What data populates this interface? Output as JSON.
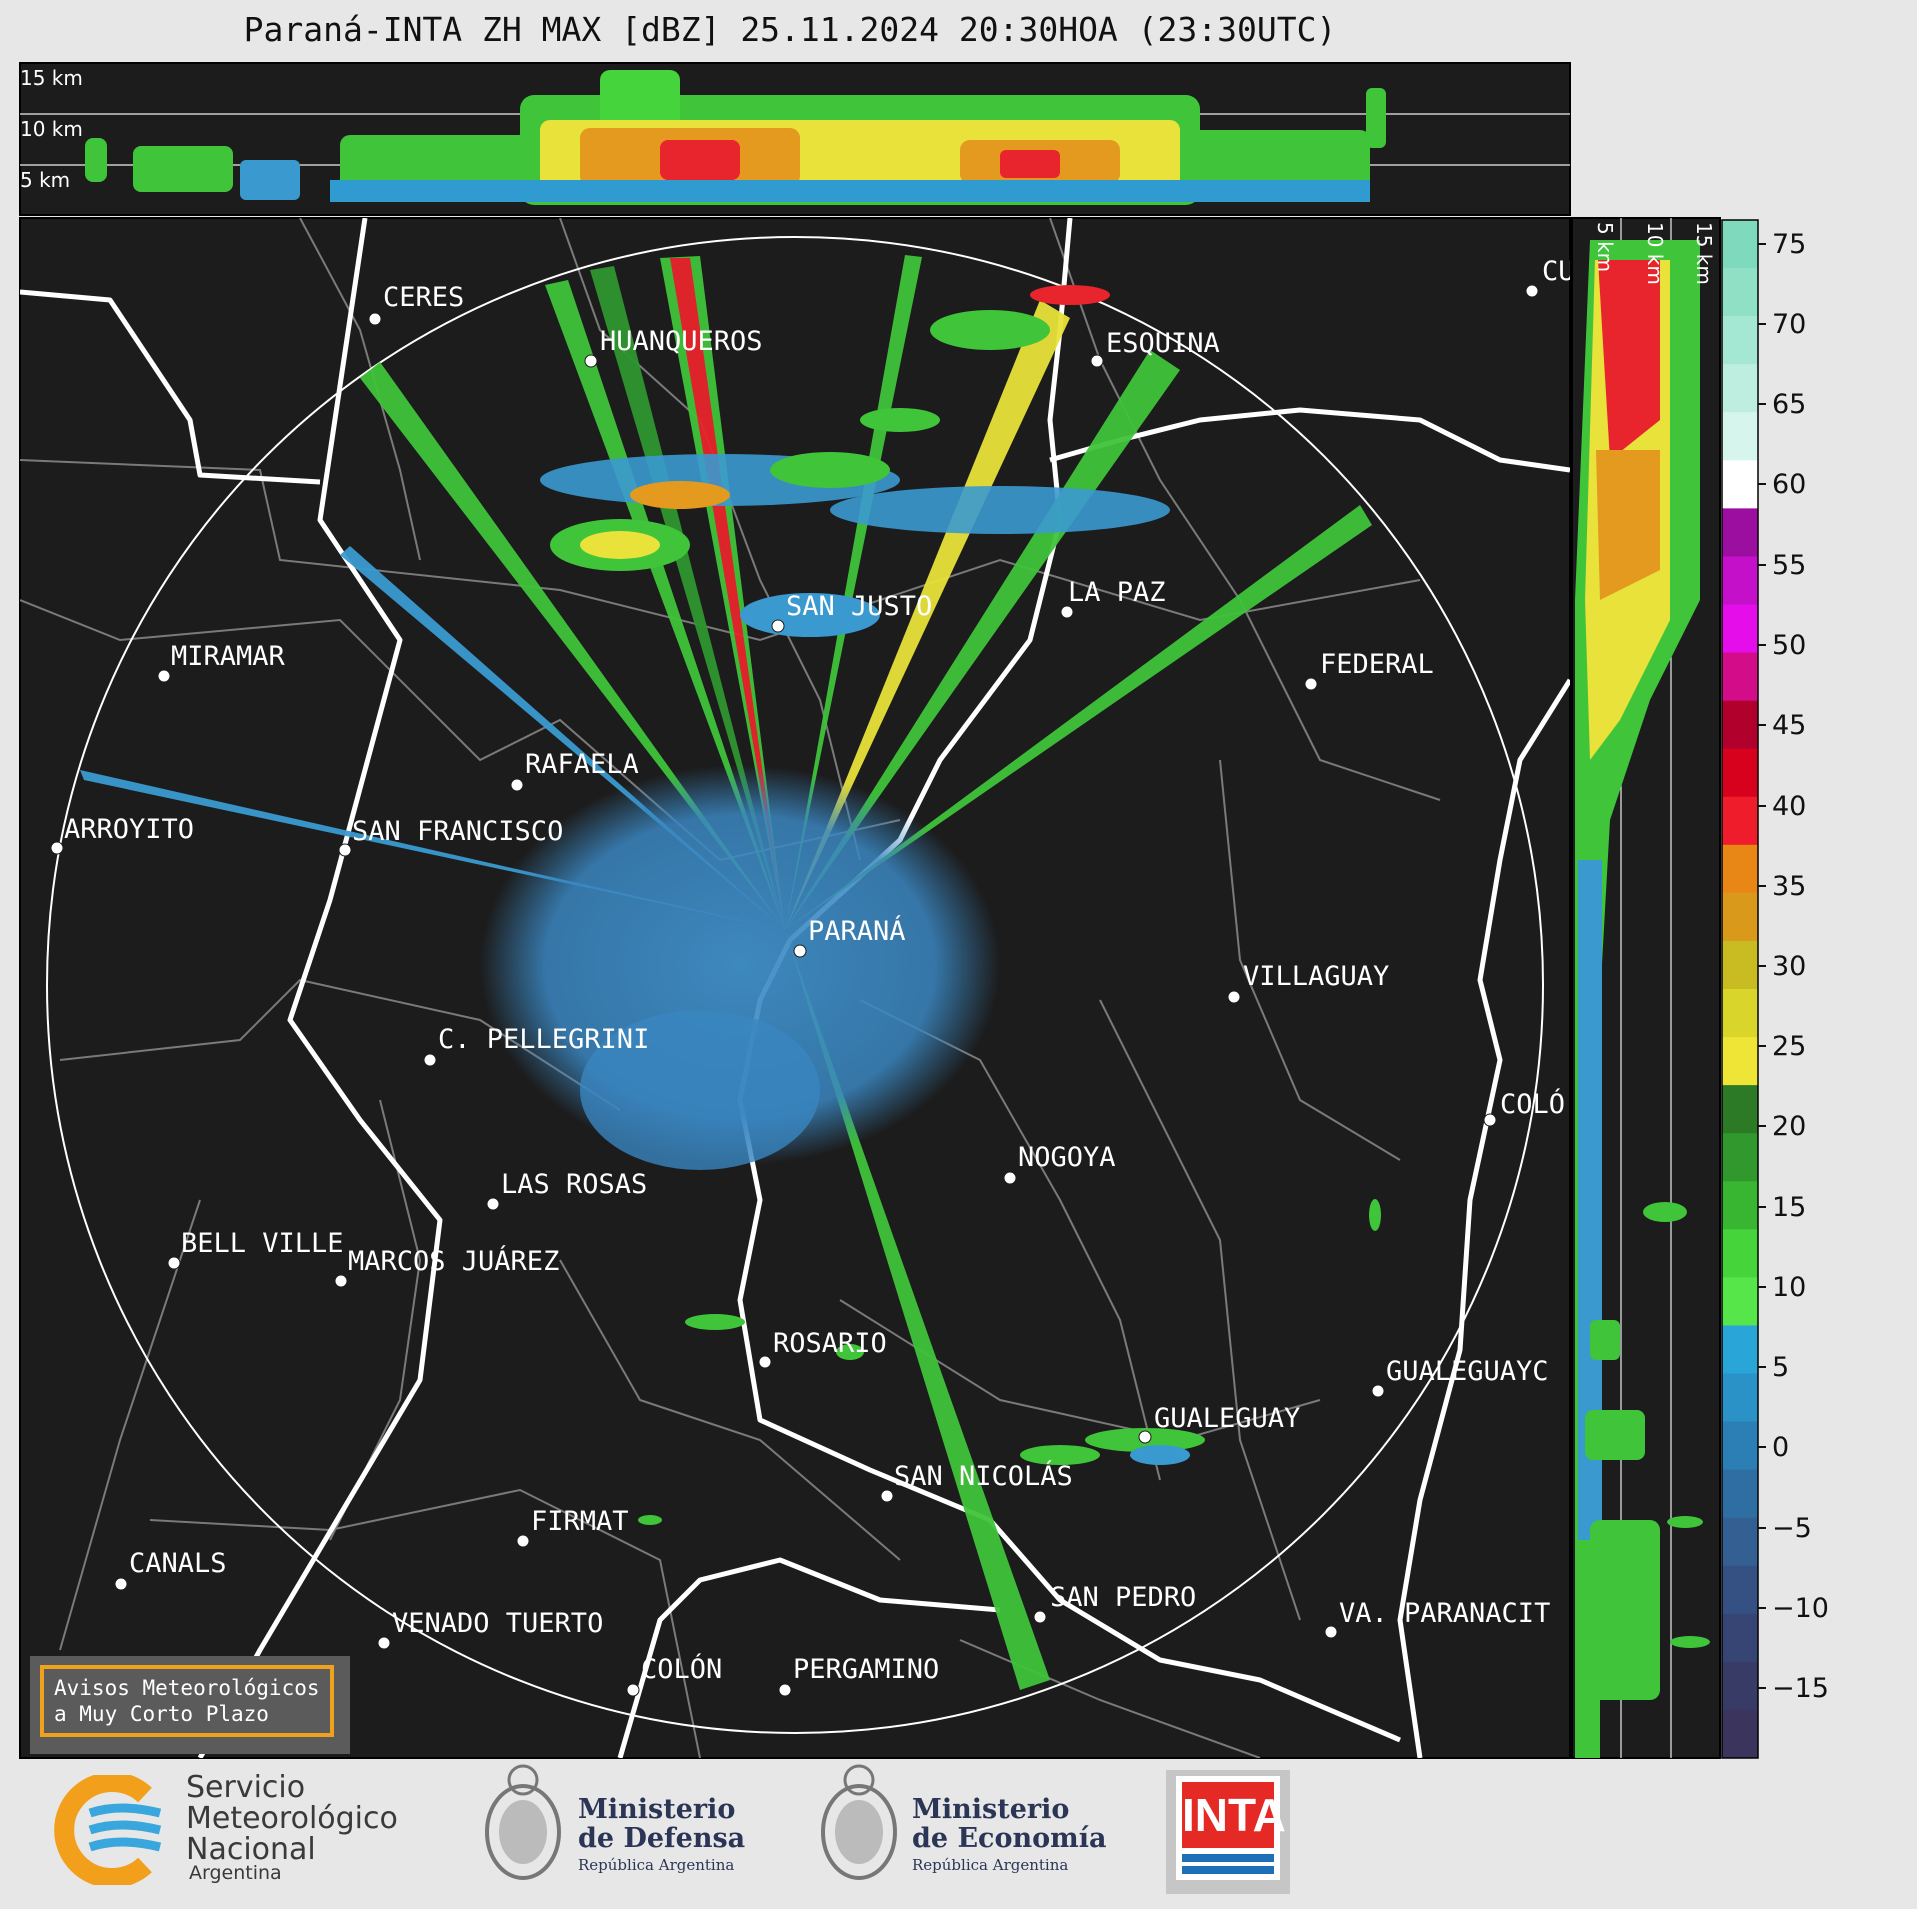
{
  "title": "Paraná-INTA ZH MAX [dBZ] 25.11.2024 20:30HOA (23:30UTC)",
  "top_panel": {
    "height_labels": [
      "15 km",
      "10 km",
      "5 km"
    ]
  },
  "side_panel": {
    "height_labels": [
      "5 km",
      "10 km",
      "15 km"
    ]
  },
  "colorbar": {
    "ticks": [
      "75",
      "70",
      "65",
      "60",
      "55",
      "50",
      "45",
      "40",
      "35",
      "30",
      "25",
      "20",
      "15",
      "10",
      "5",
      "0",
      "−5",
      "−10",
      "−15"
    ]
  },
  "cities": [
    {
      "name": "CERES"
    },
    {
      "name": "HUANQUEROS"
    },
    {
      "name": "ESQUINA"
    },
    {
      "name": "CU"
    },
    {
      "name": "SAN JUSTO"
    },
    {
      "name": "LA PAZ"
    },
    {
      "name": "MIRAMAR"
    },
    {
      "name": "FEDERAL"
    },
    {
      "name": "RAFAELA"
    },
    {
      "name": "ARROYITO"
    },
    {
      "name": "SAN FRANCISCO"
    },
    {
      "name": "PARANÁ"
    },
    {
      "name": "VILLAGUAY"
    },
    {
      "name": "C. PELLEGRINI"
    },
    {
      "name": "COLÓ"
    },
    {
      "name": "NOGOYA"
    },
    {
      "name": "LAS ROSAS"
    },
    {
      "name": "BELL VILLE"
    },
    {
      "name": "MARCOS JUÁREZ"
    },
    {
      "name": "ROSARIO"
    },
    {
      "name": "GUALEGUAYC"
    },
    {
      "name": "GUALEGUAY"
    },
    {
      "name": "SAN NICOLÁS"
    },
    {
      "name": "FIRMAT"
    },
    {
      "name": "CANALS"
    },
    {
      "name": "SAN PEDRO"
    },
    {
      "name": "VENADO TUERTO"
    },
    {
      "name": "VA. PARANACIT"
    },
    {
      "name": "COLÓN"
    },
    {
      "name": "PERGAMINO"
    }
  ],
  "notice": {
    "line1": "Avisos Meteorológicos",
    "line2": "a Muy Corto Plazo"
  },
  "logos": {
    "smn": {
      "line1": "Servicio",
      "line2": "Meteorológico",
      "line3": "Nacional",
      "country": "Argentina"
    },
    "defensa": {
      "line1": "Ministerio",
      "line2": "de Defensa",
      "sub": "República Argentina"
    },
    "economia": {
      "line1": "Ministerio",
      "line2": "de Economía",
      "sub": "República Argentina"
    },
    "inta": {
      "text": "INTA"
    }
  },
  "colors": {
    "map_bg": "#1c1c1c",
    "echo_light": "#4a90c8",
    "echo_green": "#3fc43a",
    "echo_yellow": "#e8e23a",
    "echo_red": "#e8252c",
    "notice_border": "#f0a21c"
  }
}
